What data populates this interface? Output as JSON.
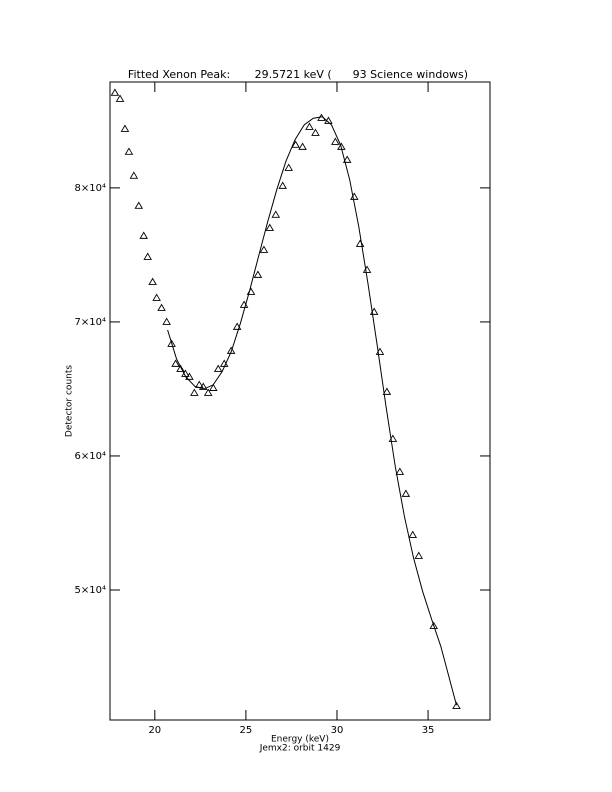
{
  "chart_data": {
    "type": "scatter",
    "title": "Fitted Xenon Peak:       29.5721 keV (      93 Science windows)",
    "x_label": "Energy (keV)",
    "subtitle": "Jemx2: orbit 1429",
    "y_label": "Detector counts",
    "xlim": [
      17.54,
      38.4
    ],
    "ylim": [
      40300,
      87900
    ],
    "xticks": [
      20,
      25,
      30,
      35
    ],
    "yticks": [
      {
        "value": 50000,
        "label": "5×10⁴"
      },
      {
        "value": 60000,
        "label": "6×10⁴"
      },
      {
        "value": 70000,
        "label": "7×10⁴"
      },
      {
        "value": 80000,
        "label": "8×10⁴"
      }
    ],
    "series": [
      {
        "style": "markers",
        "color": "#000000",
        "x": [
          17.81,
          18.09,
          18.36,
          18.58,
          18.85,
          19.12,
          19.39,
          19.61,
          19.88,
          20.1,
          20.37,
          20.65,
          20.92,
          21.14,
          21.41,
          21.68,
          21.9,
          22.17,
          22.44,
          22.66,
          22.93,
          23.21,
          23.48,
          23.81,
          24.19,
          24.52,
          24.9,
          25.28,
          25.66,
          25.99,
          26.31,
          26.64,
          27.02,
          27.35,
          27.73,
          28.11,
          28.49,
          28.82,
          29.15,
          29.53,
          29.91,
          30.24,
          30.56,
          30.95,
          31.27,
          31.65,
          32.04,
          32.36,
          32.74,
          33.07,
          33.45,
          33.78,
          34.16,
          34.49,
          35.31,
          36.56
        ],
        "values": [
          87090,
          86640,
          84400,
          82690,
          80900,
          78660,
          76420,
          74850,
          72980,
          71790,
          71040,
          70000,
          68360,
          66870,
          66490,
          66120,
          65900,
          64700,
          65300,
          65150,
          64700,
          65070,
          66490,
          66870,
          67840,
          69630,
          71270,
          72240,
          73510,
          75370,
          77010,
          77990,
          80150,
          81490,
          83210,
          83060,
          84550,
          84100,
          85220,
          85000,
          83430,
          83060,
          82090,
          79330,
          75820,
          73880,
          70750,
          67760,
          64780,
          61270,
          58810,
          57170,
          54100,
          52540,
          47310,
          41340
        ]
      },
      {
        "style": "line",
        "color": "#000000",
        "x": [
          20.7,
          21.2,
          21.7,
          22.2,
          22.7,
          23.2,
          23.7,
          24.2,
          24.7,
          25.2,
          25.7,
          26.2,
          26.7,
          27.2,
          27.7,
          28.2,
          28.7,
          29.2,
          29.7,
          30.2,
          30.7,
          31.2,
          31.7,
          32.2,
          32.7,
          33.2,
          33.7,
          34.2,
          34.7,
          35.2,
          35.7,
          36.56
        ],
        "values": [
          69400,
          67200,
          65900,
          65200,
          65000,
          65300,
          66300,
          67800,
          69900,
          72300,
          74900,
          77500,
          79900,
          82000,
          83600,
          84700,
          85200,
          85300,
          84700,
          83200,
          80600,
          77100,
          72900,
          68300,
          63600,
          59200,
          55500,
          52400,
          49900,
          47800,
          45800,
          41400
        ]
      }
    ]
  }
}
